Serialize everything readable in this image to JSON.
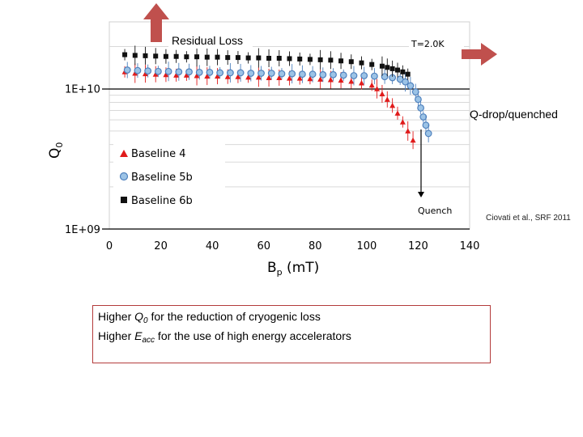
{
  "chart_data": {
    "type": "scatter",
    "xlabel": "B",
    "xlabel_sub": "p",
    "xlabel_unit": " (mT)",
    "ylabel": "Q",
    "ylabel_sub": "0",
    "xlim": [
      0,
      140
    ],
    "ylim": [
      1000000000,
      30000000000
    ],
    "y_scale": "log",
    "x_ticks": [
      "0",
      "20",
      "40",
      "60",
      "80",
      "100",
      "120",
      "140"
    ],
    "y_ticks": [
      {
        "value": 10000000000,
        "label": "1E+10"
      },
      {
        "value": 1000000000,
        "label": "1E+09"
      }
    ],
    "legend_position": "lower-left",
    "series": [
      {
        "name": "Baseline 4",
        "marker": "triangle",
        "color": "#e01b1b",
        "x": [
          6,
          10,
          14,
          18,
          22,
          26,
          30,
          34,
          38,
          42,
          46,
          50,
          54,
          58,
          62,
          66,
          70,
          74,
          78,
          82,
          86,
          90,
          94,
          98,
          102,
          104,
          106,
          108,
          110,
          112,
          114,
          116,
          118
        ],
        "y": [
          13200000000,
          12900000000,
          12800000000,
          12700000000,
          12600000000,
          12500000000,
          12500000000,
          12400000000,
          12300000000,
          12300000000,
          12200000000,
          12200000000,
          12100000000,
          12100000000,
          12000000000,
          12000000000,
          11900000000,
          11900000000,
          11800000000,
          11700000000,
          11600000000,
          11500000000,
          11300000000,
          11000000000,
          10600000000,
          10000000000,
          9200000000,
          8400000000,
          7600000000,
          6700000000,
          5800000000,
          5000000000,
          4300000000
        ]
      },
      {
        "name": "Baseline 5b",
        "marker": "circle",
        "color": "#4f81bd",
        "x": [
          7,
          11,
          15,
          19,
          23,
          27,
          31,
          35,
          39,
          43,
          47,
          51,
          55,
          59,
          63,
          67,
          71,
          75,
          79,
          83,
          87,
          91,
          95,
          99,
          103,
          107,
          110,
          113,
          115,
          117,
          119,
          120,
          121,
          122,
          123,
          124
        ],
        "y": [
          13600000000,
          13500000000,
          13400000000,
          13300000000,
          13300000000,
          13200000000,
          13200000000,
          13100000000,
          13100000000,
          13000000000,
          13000000000,
          13000000000,
          12900000000,
          12900000000,
          12900000000,
          12800000000,
          12800000000,
          12700000000,
          12700000000,
          12600000000,
          12600000000,
          12500000000,
          12400000000,
          12400000000,
          12300000000,
          12200000000,
          12000000000,
          11700000000,
          11200000000,
          10500000000,
          9500000000,
          8400000000,
          7300000000,
          6300000000,
          5500000000,
          4800000000
        ]
      },
      {
        "name": "Baseline 6b",
        "marker": "square",
        "color": "#111111",
        "x": [
          6,
          10,
          14,
          18,
          22,
          26,
          30,
          34,
          38,
          42,
          46,
          50,
          54,
          58,
          62,
          66,
          70,
          74,
          78,
          82,
          86,
          90,
          94,
          98,
          102,
          106,
          108,
          110,
          112,
          114,
          116
        ],
        "y": [
          17500000000,
          17300000000,
          17200000000,
          17100000000,
          17000000000,
          17000000000,
          16900000000,
          16900000000,
          16800000000,
          16800000000,
          16700000000,
          16700000000,
          16600000000,
          16600000000,
          16500000000,
          16500000000,
          16400000000,
          16300000000,
          16200000000,
          16100000000,
          16000000000,
          15800000000,
          15600000000,
          15300000000,
          14900000000,
          14500000000,
          14200000000,
          13900000000,
          13600000000,
          13200000000,
          12700000000
        ]
      }
    ]
  },
  "annotations": {
    "residual_loss": "Residual Loss",
    "temperature": "T=2.0K",
    "q_drop": "Q-drop/quenched",
    "quench": "Quench",
    "credit": "Ciovati et al., SRF 2011"
  },
  "arrow_color": "#c0504d",
  "note": {
    "line1_prefix": "Higher ",
    "line1_var": "Q",
    "line1_sub": "0",
    "line1_suffix": " for the reduction of cryogenic loss",
    "line2_prefix": "Higher ",
    "line2_var": "E",
    "line2_sub": "acc",
    "line2_suffix": " for the use of high energy accelerators"
  }
}
